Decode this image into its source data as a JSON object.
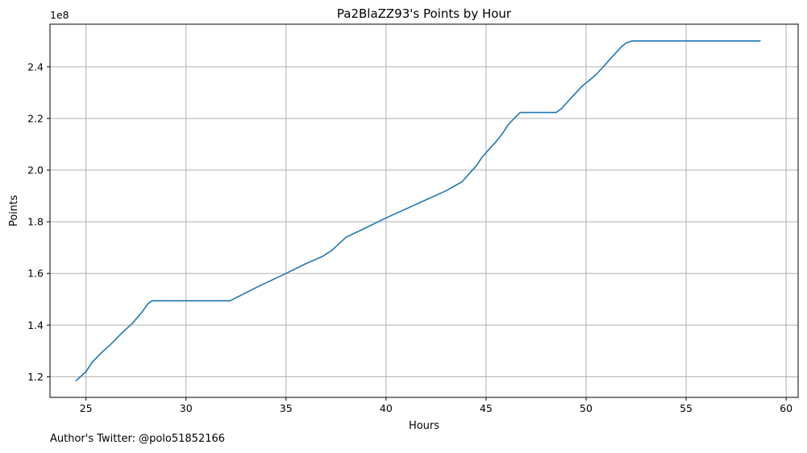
{
  "chart_data": {
    "type": "line",
    "title": "Pa2BlaZZ93's Points by Hour",
    "xlabel": "Hours",
    "ylabel": "Points",
    "y_offset_label": "1e8",
    "xlim": [
      23.2,
      60.6
    ],
    "ylim": [
      1.12,
      2.565
    ],
    "x_ticks": [
      25,
      30,
      35,
      40,
      45,
      50,
      55,
      60
    ],
    "y_ticks": [
      1.2,
      1.4,
      1.6,
      1.8,
      2.0,
      2.2,
      2.4
    ],
    "y_tick_labels": [
      "1.2",
      "1.4",
      "1.6",
      "1.8",
      "2.0",
      "2.2",
      "2.4"
    ],
    "grid": true,
    "line_color": "#1f77b4",
    "grid_color": "#b0b0b0",
    "series": [
      {
        "x": [
          24.5,
          25.0,
          25.3,
          25.8,
          26.3,
          26.8,
          27.3,
          27.8,
          28.1,
          28.3,
          29.0,
          30.0,
          31.0,
          32.2,
          33.5,
          35.0,
          36.0,
          36.8,
          37.3,
          38.0,
          39.0,
          40.0,
          41.0,
          42.0,
          43.0,
          43.8,
          44.2,
          44.5,
          44.8,
          45.2,
          45.5,
          45.8,
          46.1,
          46.4,
          46.7,
          47.0,
          47.5,
          48.0,
          48.5,
          48.8,
          49.2,
          49.5,
          49.8,
          50.2,
          50.5,
          50.8,
          51.2,
          51.5,
          51.8,
          52.0,
          52.3,
          53.0,
          54.0,
          55.0,
          56.0,
          57.0,
          58.0,
          58.7
        ],
        "values": [
          1.185,
          1.22,
          1.255,
          1.295,
          1.33,
          1.37,
          1.405,
          1.45,
          1.483,
          1.494,
          1.494,
          1.494,
          1.494,
          1.494,
          1.545,
          1.6,
          1.638,
          1.665,
          1.69,
          1.74,
          1.777,
          1.815,
          1.85,
          1.885,
          1.92,
          1.955,
          1.99,
          2.015,
          2.05,
          2.085,
          2.11,
          2.14,
          2.175,
          2.2,
          2.223,
          2.223,
          2.223,
          2.223,
          2.223,
          2.24,
          2.275,
          2.3,
          2.325,
          2.35,
          2.37,
          2.395,
          2.43,
          2.455,
          2.48,
          2.492,
          2.5,
          2.5,
          2.5,
          2.5,
          2.5,
          2.5,
          2.5,
          2.5
        ]
      }
    ]
  },
  "footer": {
    "text": "Author's Twitter: @polo51852166"
  }
}
